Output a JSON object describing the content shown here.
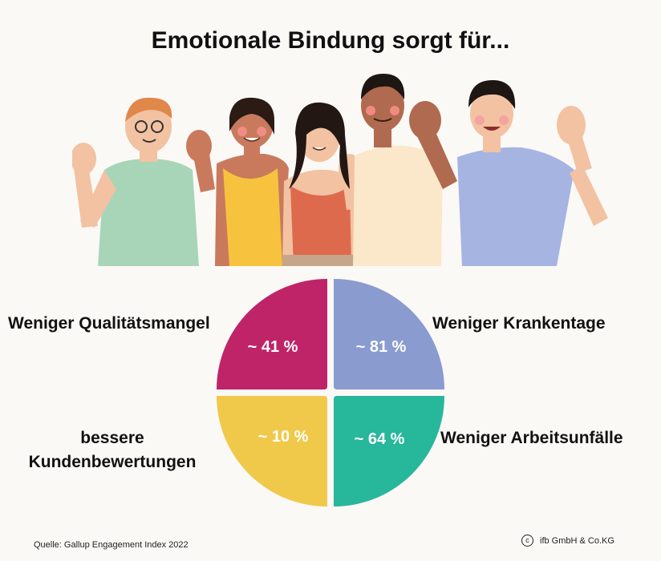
{
  "title": "Emotionale Bindung sorgt für...",
  "quadrants": {
    "top_left": {
      "label": "Weniger Qualitätsmangel",
      "value": "~ 41 %",
      "color": "#bf2468"
    },
    "top_right": {
      "label": "Weniger Krankentage",
      "value": "~ 81 %",
      "color": "#8a9bd0"
    },
    "bottom_right": {
      "label": "Weniger Arbeitsunfälle",
      "value": "~ 64 %",
      "color": "#27b79a"
    },
    "bottom_left": {
      "label": "bessere Kundenbewertungen",
      "value": "~ 10 %",
      "color": "#f0c94b"
    }
  },
  "illustration": {
    "icon": "waving-people-illustration"
  },
  "footer": {
    "source": "Quelle: Gallup Engagement Index 2022",
    "copyright_icon": "copyright-icon",
    "company": "ifb GmbH & Co.KG"
  }
}
